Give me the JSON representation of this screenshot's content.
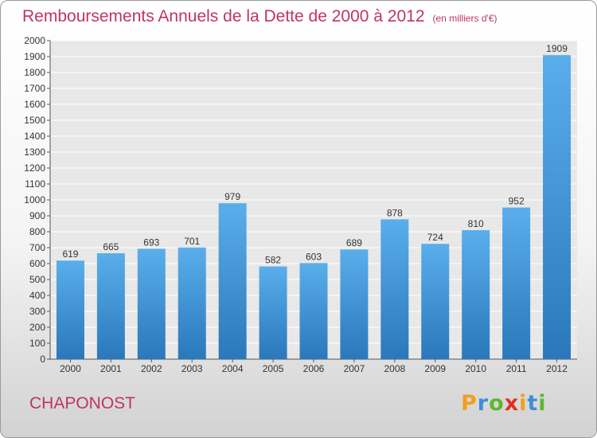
{
  "header": {
    "title": "Remboursements Annuels de la Dette de 2000 à 2012",
    "unit": "(en milliers d'€)"
  },
  "footer": {
    "city": "CHAPONOST",
    "brand": [
      {
        "ch": "P",
        "color": "#f0a020"
      },
      {
        "ch": "r",
        "color": "#3a8fd8"
      },
      {
        "ch": "o",
        "color": "#5cb82e"
      },
      {
        "ch": "x",
        "color": "#e03020"
      },
      {
        "ch": "i",
        "color": "#f0a020"
      },
      {
        "ch": "t",
        "color": "#3a8fd8"
      },
      {
        "ch": "i",
        "color": "#5cb82e"
      }
    ]
  },
  "chart_data": {
    "type": "bar",
    "title": "Remboursements Annuels de la Dette de 2000 à 2012",
    "categories": [
      "2000",
      "2001",
      "2002",
      "2003",
      "2004",
      "2005",
      "2006",
      "2007",
      "2008",
      "2009",
      "2010",
      "2011",
      "2012"
    ],
    "values": [
      619,
      665,
      693,
      701,
      979,
      582,
      603,
      689,
      878,
      724,
      810,
      952,
      1909
    ],
    "ylim": [
      0,
      2000
    ],
    "ytick_step": 100,
    "grid": true,
    "bar_color": "#3f9be0"
  }
}
